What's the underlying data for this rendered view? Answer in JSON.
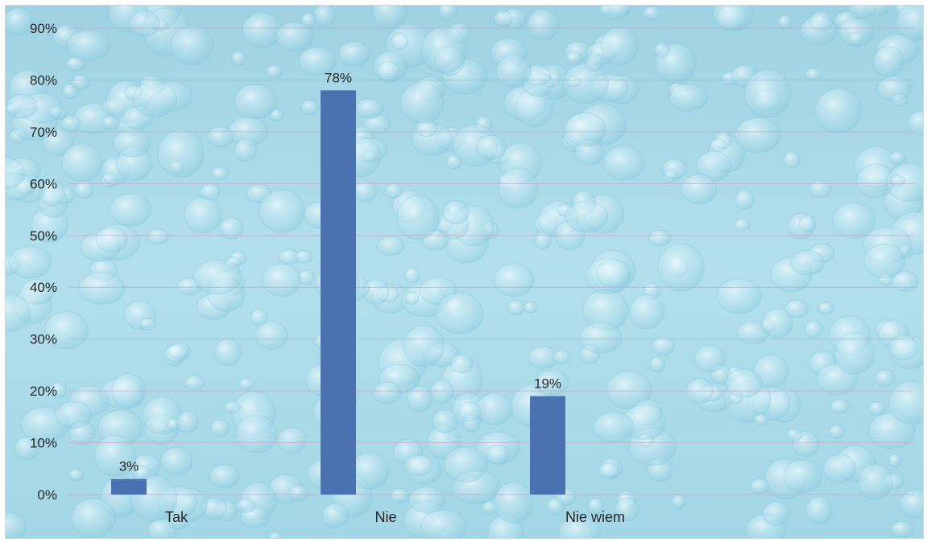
{
  "chart_data": {
    "type": "bar",
    "categories": [
      "Tak",
      "Nie",
      "Nie wiem"
    ],
    "values": [
      3,
      78,
      19
    ],
    "data_labels": [
      "3%",
      "78%",
      "19%"
    ],
    "title": "",
    "xlabel": "",
    "ylabel": "",
    "ylim": [
      0,
      90
    ],
    "y_ticks": [
      0,
      10,
      20,
      30,
      40,
      50,
      60,
      70,
      80,
      90
    ],
    "y_tick_labels": [
      "0%",
      "10%",
      "20%",
      "30%",
      "40%",
      "50%",
      "60%",
      "70%",
      "80%",
      "90%"
    ],
    "grid": true,
    "legend": "none",
    "bar_color": "#4a72b0",
    "background_color": "#a9d8e6"
  }
}
